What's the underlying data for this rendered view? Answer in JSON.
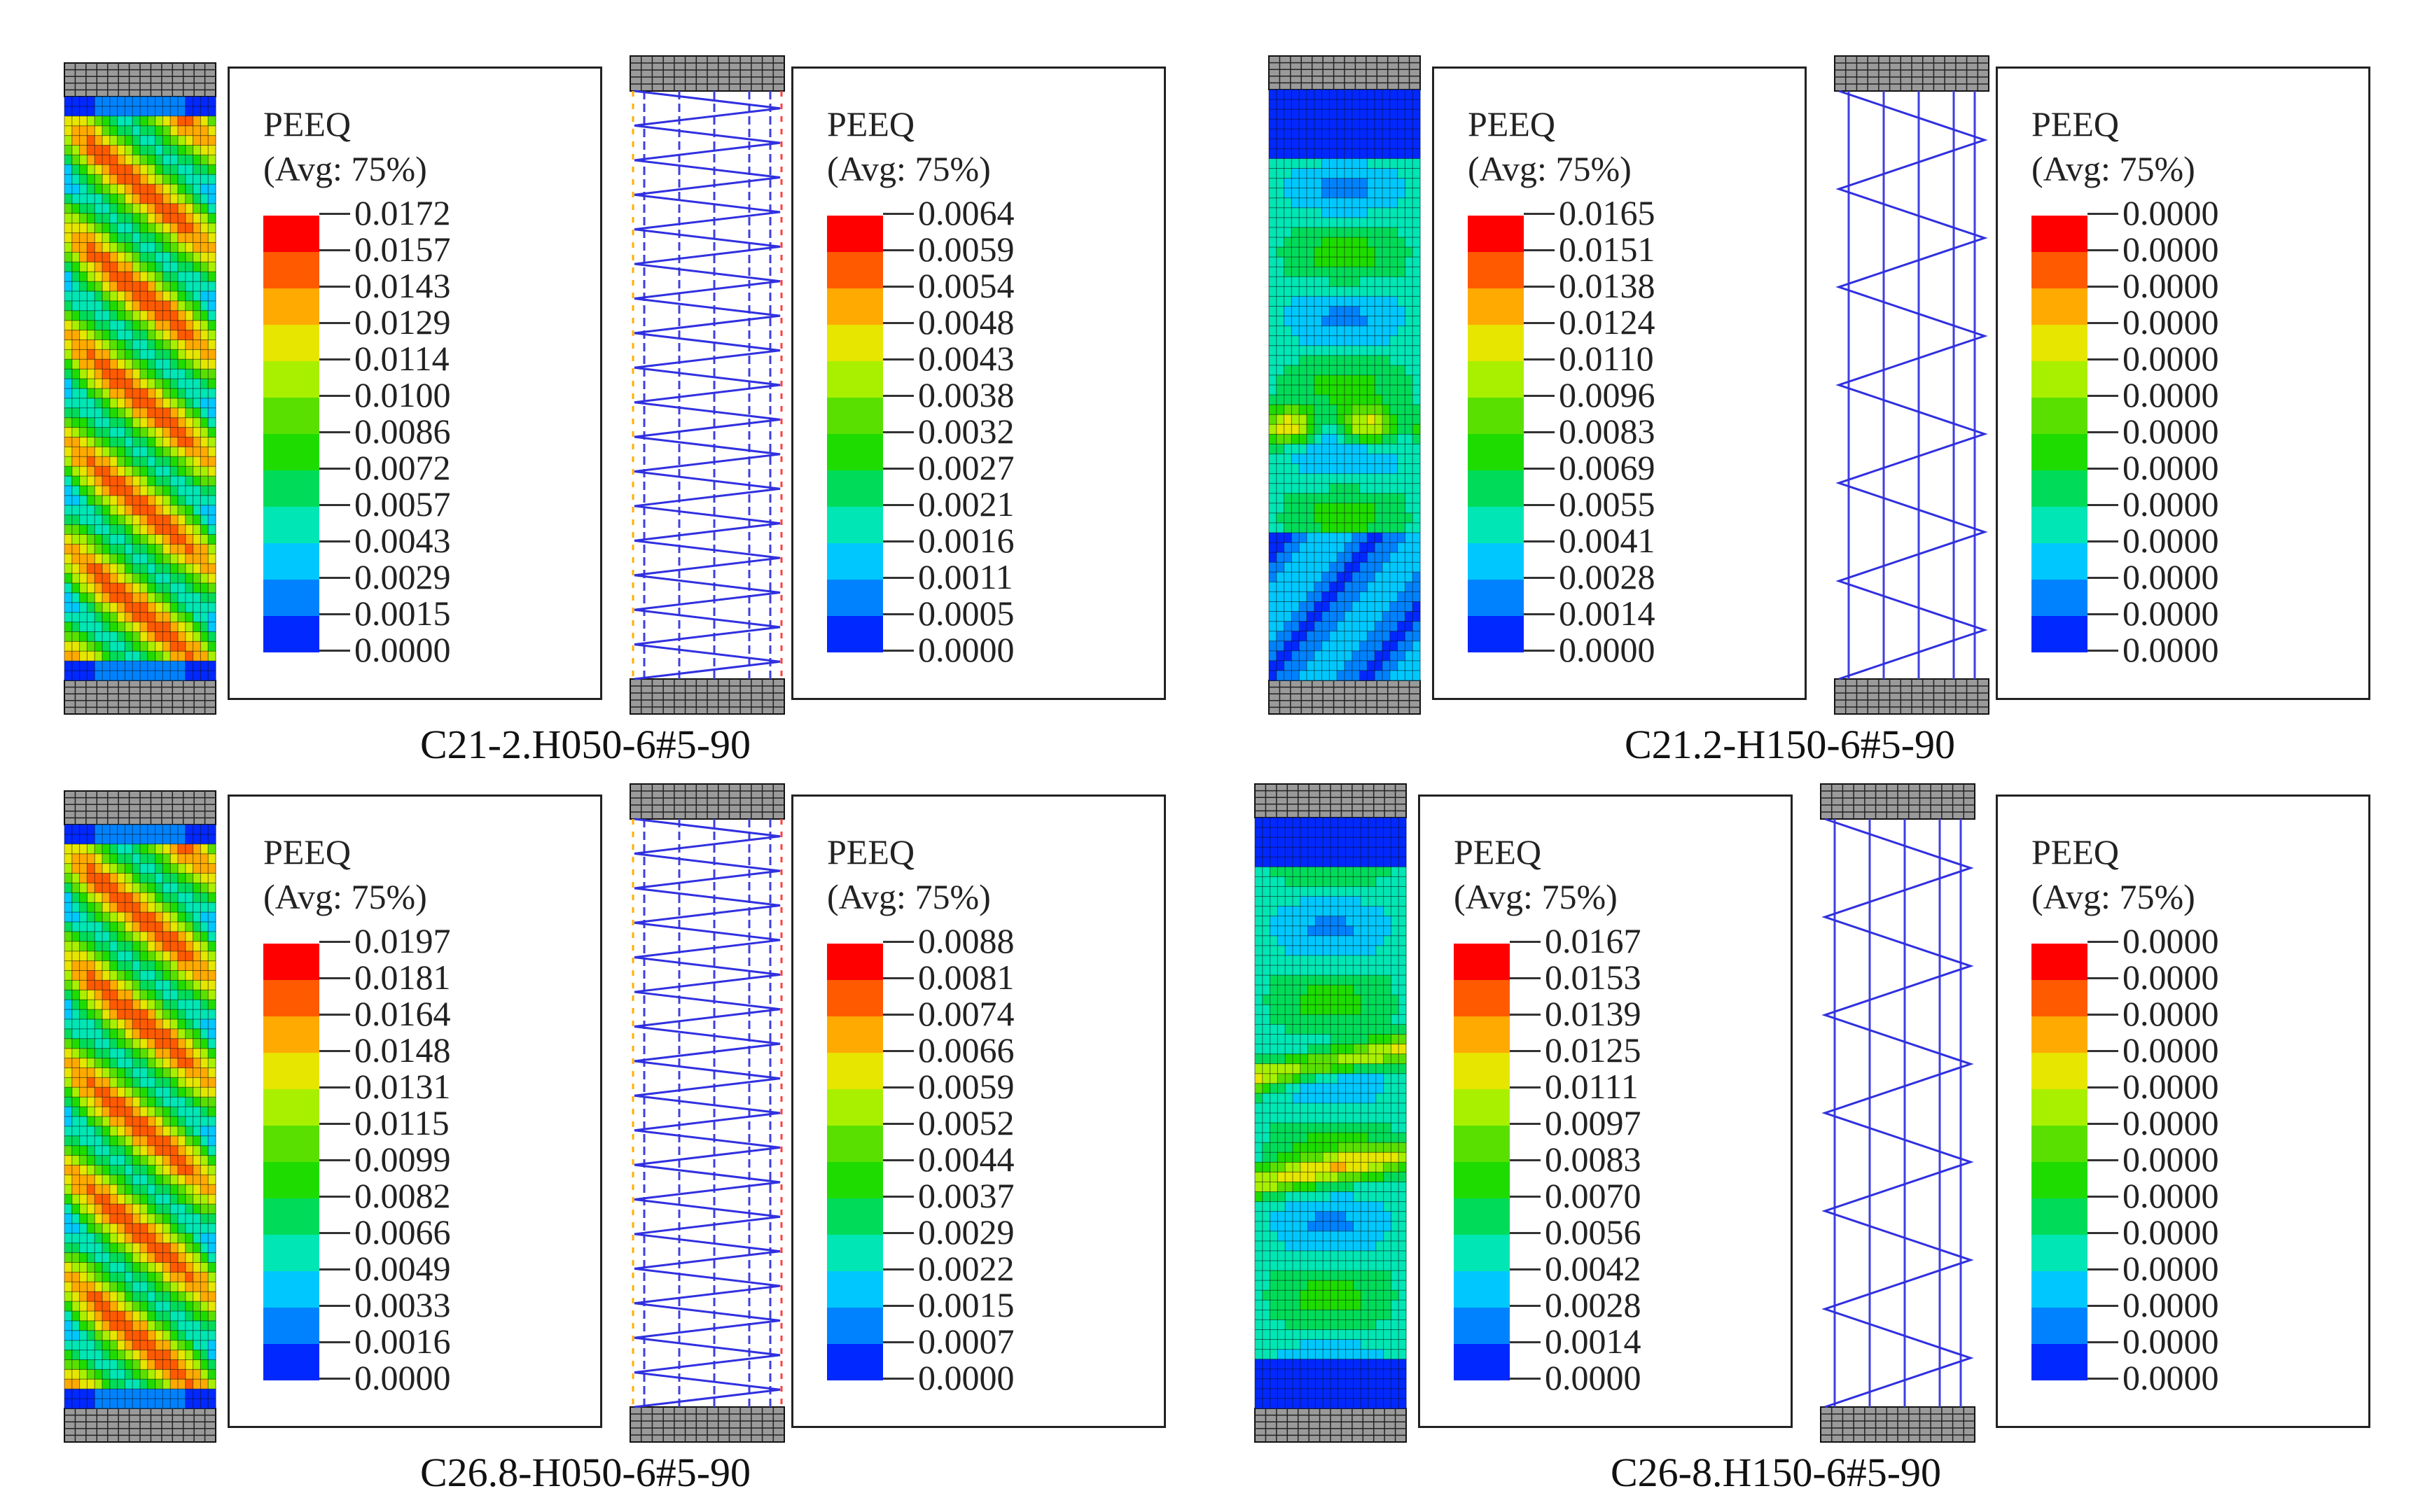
{
  "legend_common": {
    "variable": "PEEQ",
    "averaging": "(Avg: 75%)"
  },
  "colorbar_colors": [
    "#ff0000",
    "#ff5a00",
    "#ffaa00",
    "#e6e600",
    "#a8f000",
    "#5ae000",
    "#1edc00",
    "#00dc5a",
    "#00e6b4",
    "#00c8ff",
    "#0082ff",
    "#0028ff"
  ],
  "panels": [
    {
      "caption": "C21-2.H050-6#5-90",
      "concrete_legend": [
        "0.0172",
        "0.0157",
        "0.0143",
        "0.0129",
        "0.0114",
        "0.0100",
        "0.0086",
        "0.0072",
        "0.0057",
        "0.0043",
        "0.0029",
        "0.0015",
        "0.0000"
      ],
      "steel_legend": [
        "0.0064",
        "0.0059",
        "0.0054",
        "0.0048",
        "0.0043",
        "0.0038",
        "0.0032",
        "0.0027",
        "0.0021",
        "0.0016",
        "0.0011",
        "0.0005",
        "0.0000"
      ]
    },
    {
      "caption": "C21.2-H150-6#5-90",
      "concrete_legend": [
        "0.0165",
        "0.0151",
        "0.0138",
        "0.0124",
        "0.0110",
        "0.0096",
        "0.0083",
        "0.0069",
        "0.0055",
        "0.0041",
        "0.0028",
        "0.0014",
        "0.0000"
      ],
      "steel_legend": [
        "0.0000",
        "0.0000",
        "0.0000",
        "0.0000",
        "0.0000",
        "0.0000",
        "0.0000",
        "0.0000",
        "0.0000",
        "0.0000",
        "0.0000",
        "0.0000",
        "0.0000"
      ]
    },
    {
      "caption": "C26.8-H050-6#5-90",
      "concrete_legend": [
        "0.0197",
        "0.0181",
        "0.0164",
        "0.0148",
        "0.0131",
        "0.0115",
        "0.0099",
        "0.0082",
        "0.0066",
        "0.0049",
        "0.0033",
        "0.0016",
        "0.0000"
      ],
      "steel_legend": [
        "0.0088",
        "0.0081",
        "0.0074",
        "0.0066",
        "0.0059",
        "0.0052",
        "0.0044",
        "0.0037",
        "0.0029",
        "0.0022",
        "0.0015",
        "0.0007",
        "0.0000"
      ]
    },
    {
      "caption": "C26-8.H150-6#5-90",
      "concrete_legend": [
        "0.0167",
        "0.0153",
        "0.0139",
        "0.0125",
        "0.0111",
        "0.0097",
        "0.0083",
        "0.0070",
        "0.0056",
        "0.0042",
        "0.0028",
        "0.0014",
        "0.0000"
      ],
      "steel_legend": [
        "0.0000",
        "0.0000",
        "0.0000",
        "0.0000",
        "0.0000",
        "0.0000",
        "0.0000",
        "0.0000",
        "0.0000",
        "0.0000",
        "0.0000",
        "0.0000",
        "0.0000"
      ]
    }
  ]
}
